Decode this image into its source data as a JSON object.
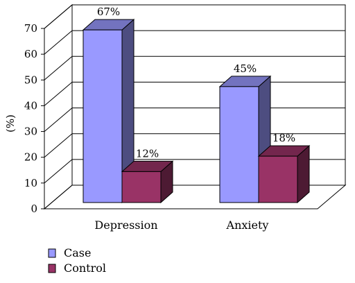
{
  "chart_data": {
    "type": "bar",
    "ylabel": "(%)",
    "ylim": [
      0,
      70
    ],
    "yticks": [
      0,
      10,
      20,
      30,
      40,
      50,
      60,
      70
    ],
    "grid": true,
    "legend_position": "bottom-left",
    "categories": [
      "Depression",
      "Anxiety"
    ],
    "series": [
      {
        "name": "Case",
        "values": [
          67,
          45
        ],
        "labels": [
          "67%",
          "45%"
        ],
        "color": "#9999ff"
      },
      {
        "name": "Control",
        "values": [
          12,
          18
        ],
        "labels": [
          "12%",
          "18%"
        ],
        "color": "#993366"
      }
    ]
  }
}
